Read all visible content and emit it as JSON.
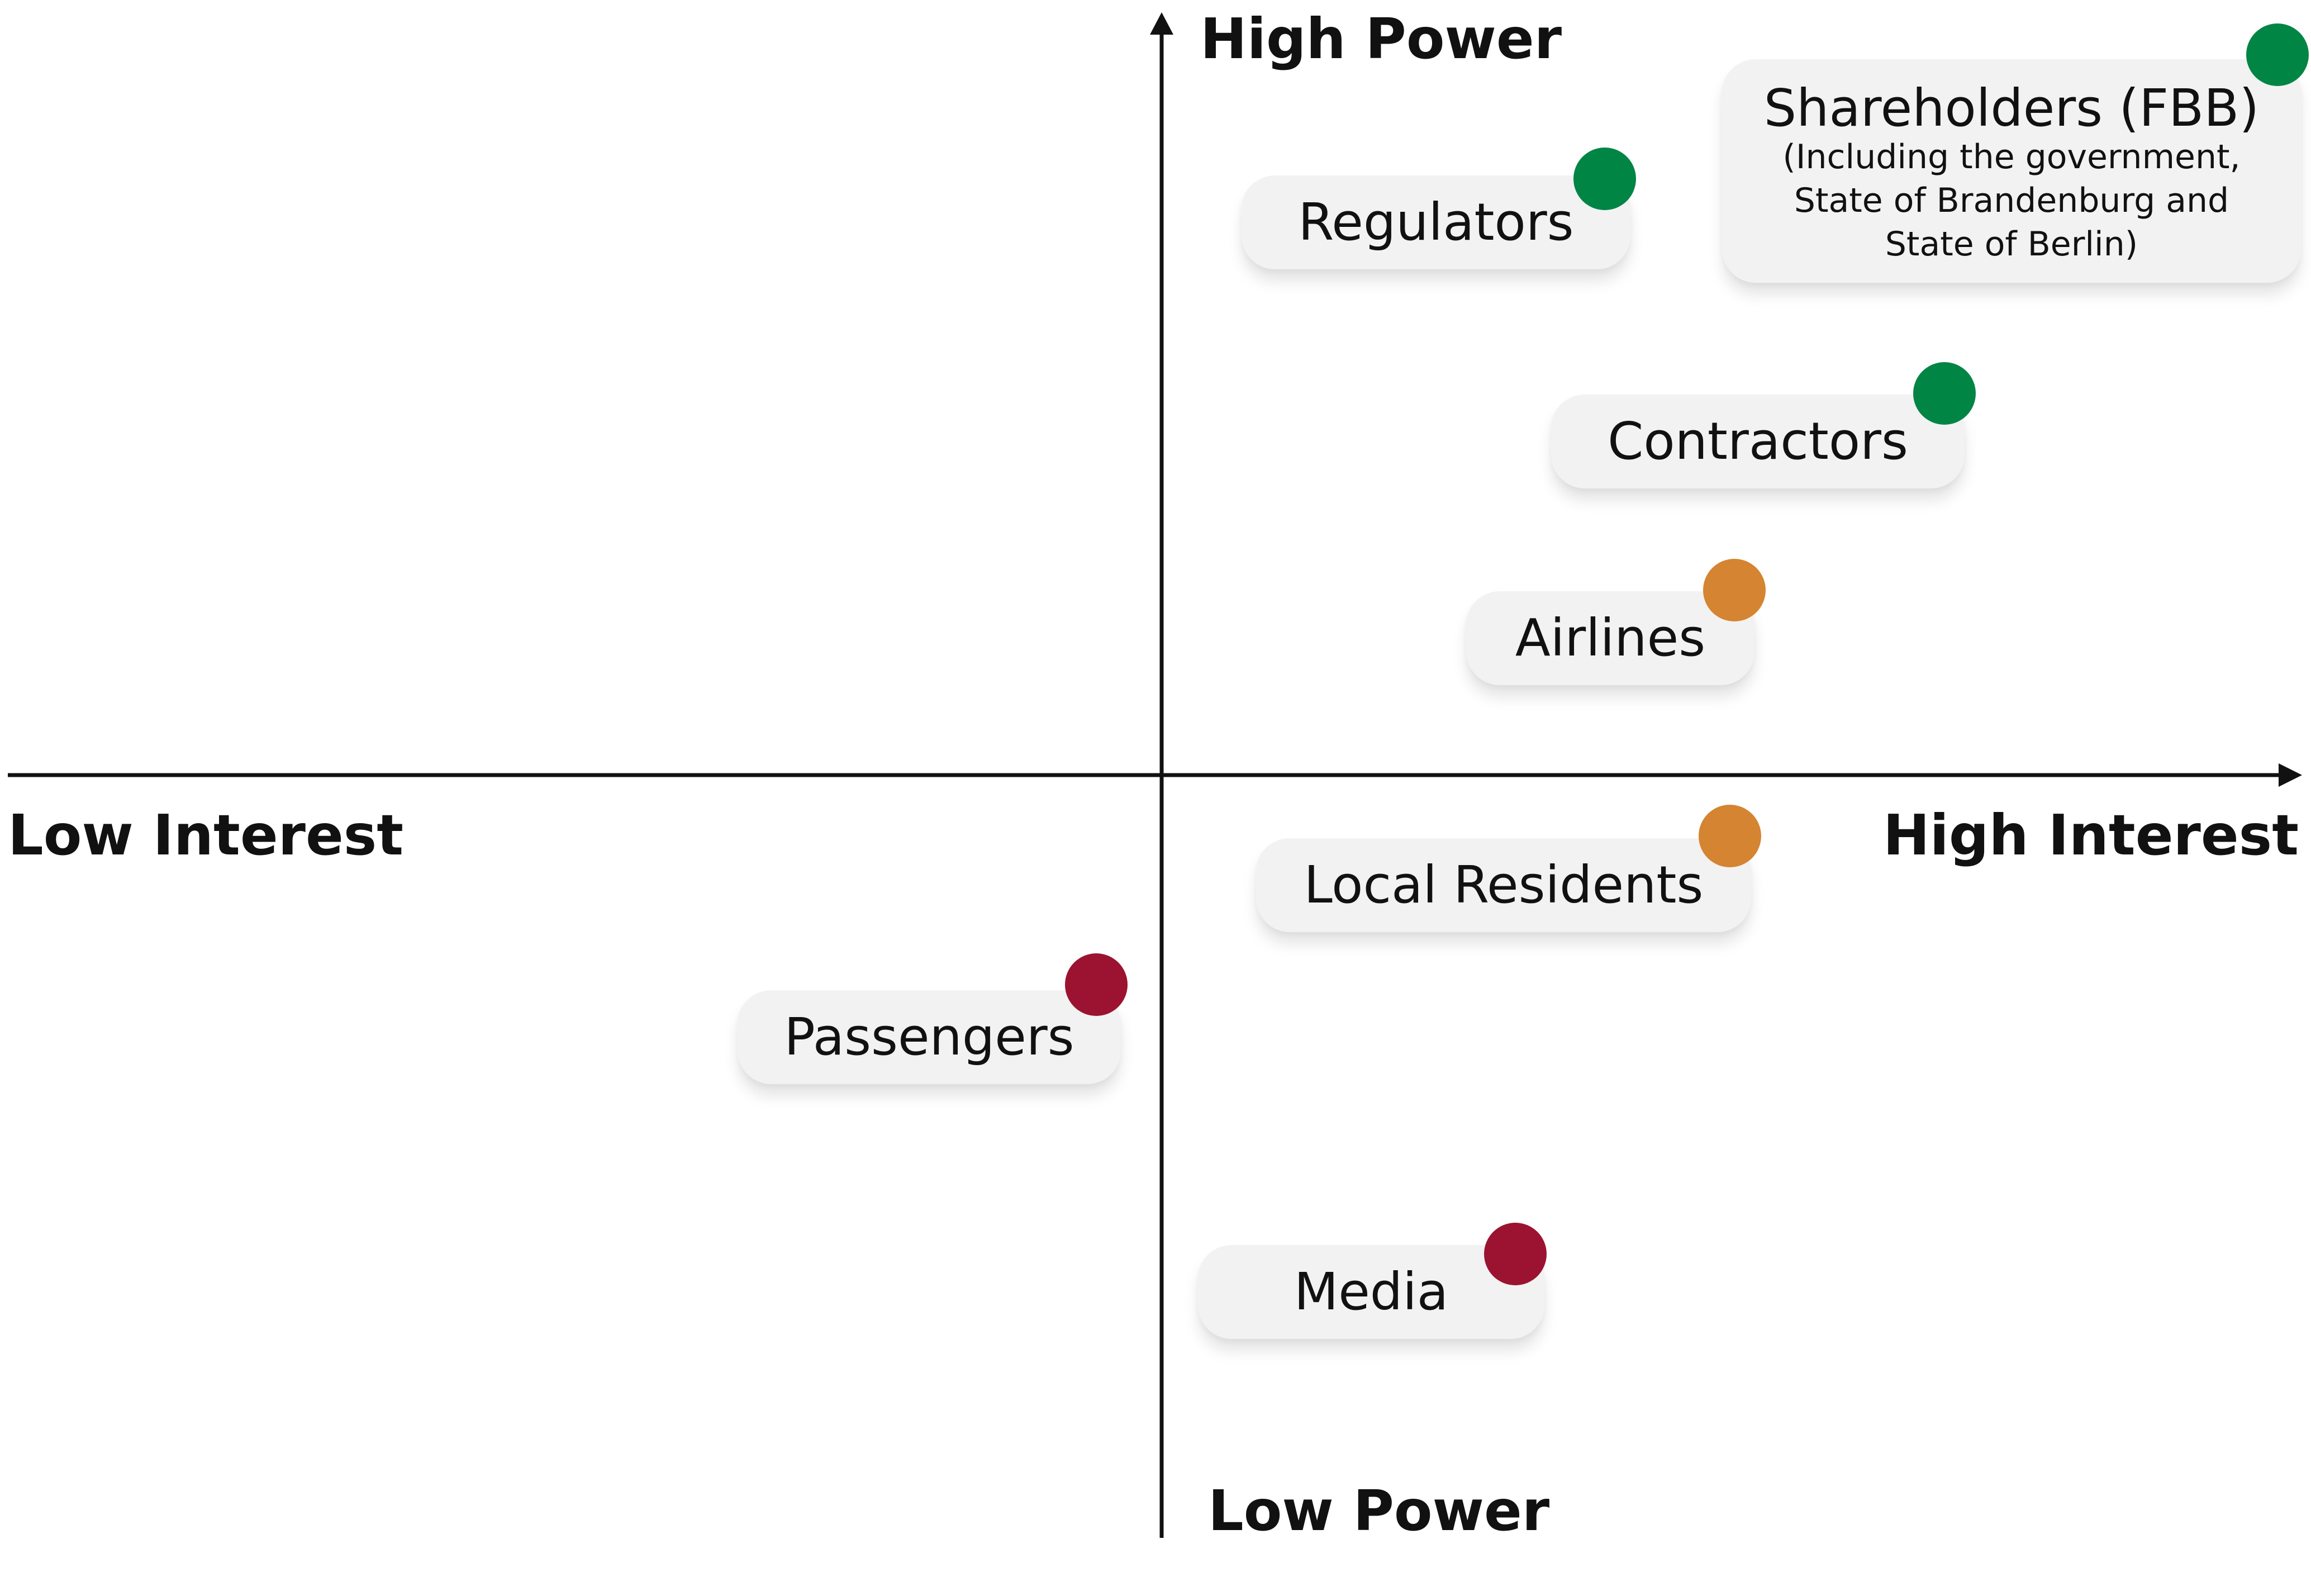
{
  "axes": {
    "high_power": "High Power",
    "low_power": "Low Power",
    "low_interest": "Low Interest",
    "high_interest": "High Interest"
  },
  "status_colors": {
    "green": "#008545",
    "orange": "#d58431",
    "red": "#9b1330"
  },
  "stakeholders": [
    {
      "key": "shareholders",
      "name": "Shareholders (FBB)",
      "details": [
        "(Including the government,",
        "State of Brandenburg and",
        "State of Berlin)"
      ],
      "status": "green"
    },
    {
      "key": "regulators",
      "name": "Regulators",
      "details": [],
      "status": "green"
    },
    {
      "key": "contractors",
      "name": "Contractors",
      "details": [],
      "status": "green"
    },
    {
      "key": "airlines",
      "name": "Airlines",
      "details": [],
      "status": "orange"
    },
    {
      "key": "local-residents",
      "name": "Local Residents",
      "details": [],
      "status": "orange"
    },
    {
      "key": "passengers",
      "name": "Passengers",
      "details": [],
      "status": "red"
    },
    {
      "key": "media",
      "name": "Media",
      "details": [],
      "status": "red"
    }
  ]
}
